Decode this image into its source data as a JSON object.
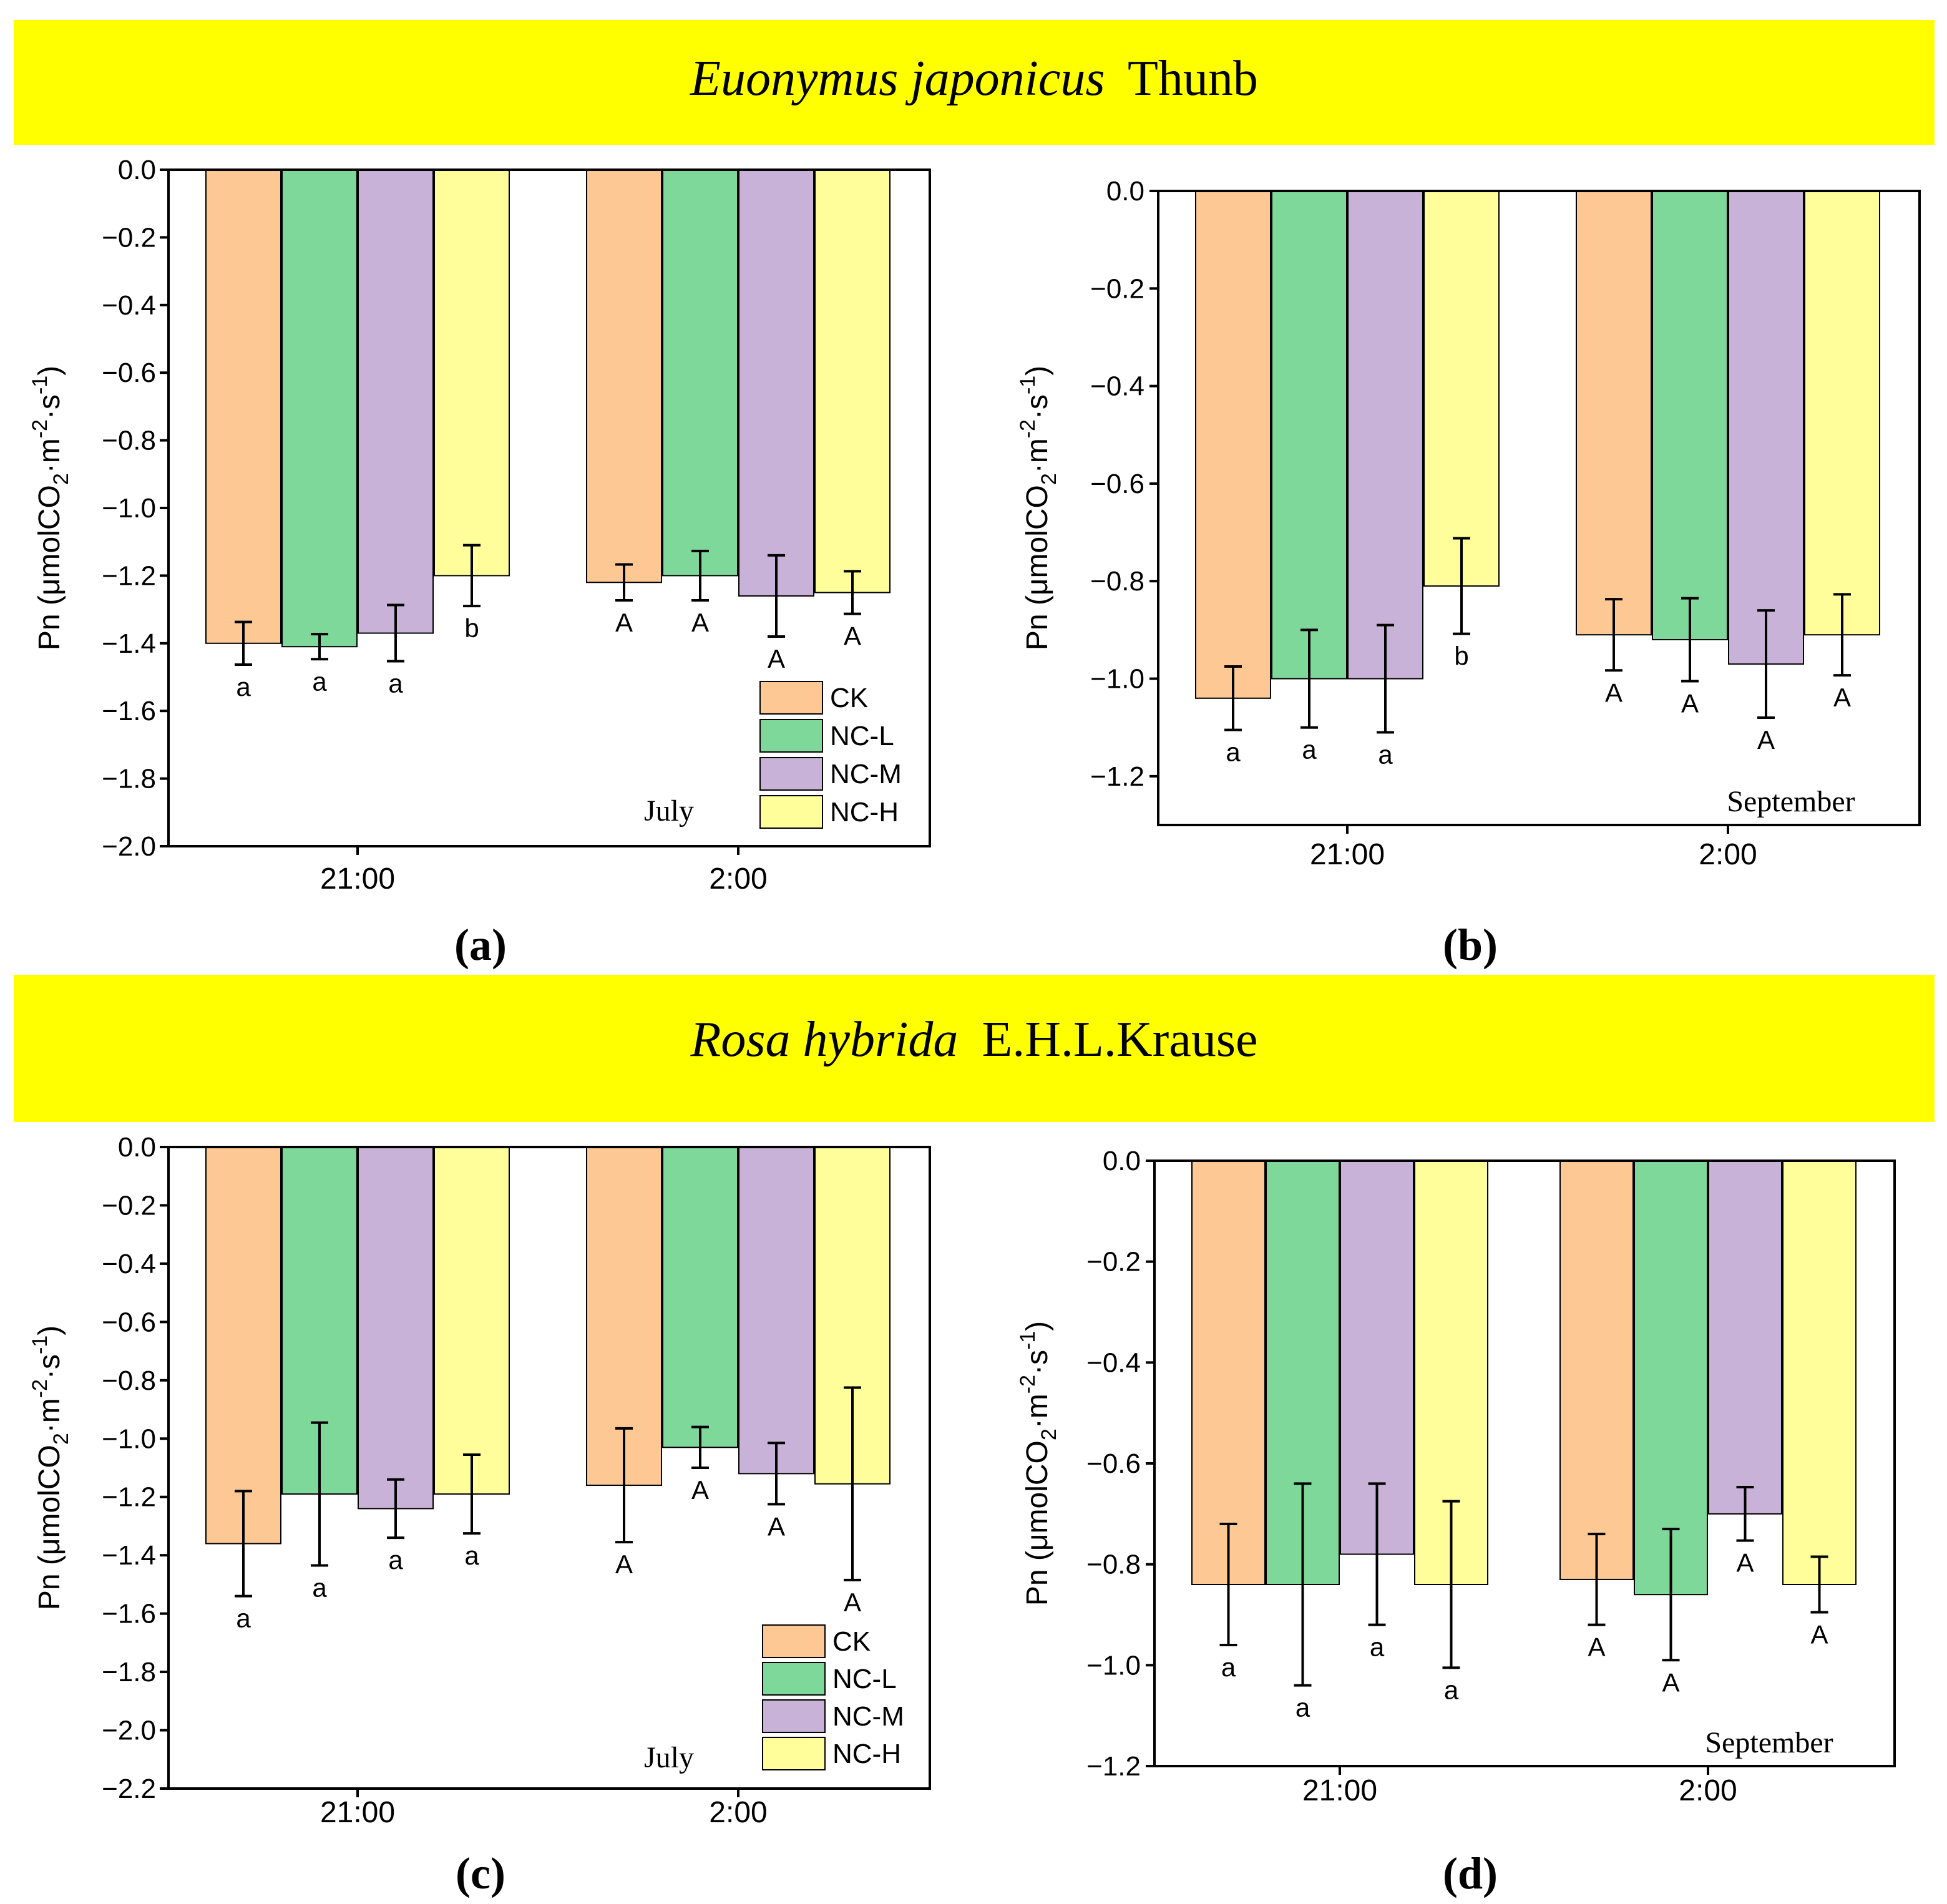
{
  "colors": {
    "banner": "#ffff00",
    "CK": "#fdc893",
    "NC-L": "#7ed89a",
    "NC-M": "#c9b2d7",
    "NC-H": "#fffe9a",
    "axis": "#000000"
  },
  "banners": [
    {
      "species": "Euonymus japonicus",
      "authority": "Thunb"
    },
    {
      "species": "Rosa hybrida",
      "authority": "E.H.L.Krause"
    }
  ],
  "panel_labels": [
    "(a)",
    "(b)",
    "(c)",
    "(d)"
  ],
  "chart_data": [
    {
      "id": "a",
      "type": "bar",
      "title": "",
      "xlabel": "",
      "ylabel": "Pn (μmolCO2·m-2·s-1)",
      "month_label": "July",
      "categories": [
        "21:00",
        "2:00"
      ],
      "ylim": [
        -2.0,
        0.0
      ],
      "yticks": [
        0.0,
        -0.2,
        -0.4,
        -0.6,
        -0.8,
        -1.0,
        -1.2,
        -1.4,
        -1.6,
        -1.8,
        -2.0
      ],
      "ytick_labels": [
        "0.0",
        "−0.2",
        "−0.4",
        "−0.6",
        "−0.8",
        "−1.0",
        "−1.2",
        "−1.4",
        "−1.6",
        "−1.8",
        "−2.0"
      ],
      "legend": [
        "CK",
        "NC-L",
        "NC-M",
        "NC-H"
      ],
      "series": [
        {
          "name": "CK",
          "values": [
            -1.4,
            -1.22
          ],
          "errors": [
            0.063,
            0.053
          ],
          "letters": [
            "a",
            "A"
          ]
        },
        {
          "name": "NC-L",
          "values": [
            -1.41,
            -1.2
          ],
          "errors": [
            0.037,
            0.073
          ],
          "letters": [
            "a",
            "A"
          ]
        },
        {
          "name": "NC-M",
          "values": [
            -1.37,
            -1.26
          ],
          "errors": [
            0.083,
            0.12
          ],
          "letters": [
            "a",
            "A"
          ]
        },
        {
          "name": "NC-H",
          "values": [
            -1.2,
            -1.25
          ],
          "errors": [
            0.09,
            0.063
          ],
          "letters": [
            "b",
            "A"
          ]
        }
      ]
    },
    {
      "id": "b",
      "type": "bar",
      "title": "",
      "xlabel": "",
      "ylabel": "Pn (μmolCO2·m-2·s-1)",
      "month_label": "September",
      "categories": [
        "21:00",
        "2:00"
      ],
      "ylim": [
        -1.3,
        0.0
      ],
      "yticks": [
        0.0,
        -0.2,
        -0.4,
        -0.6,
        -0.8,
        -1.0,
        -1.2
      ],
      "ytick_labels": [
        "0.0",
        "−0.2",
        "−0.4",
        "−0.6",
        "−0.8",
        "−1.0",
        "−1.2"
      ],
      "legend": [],
      "series": [
        {
          "name": "CK",
          "values": [
            -1.04,
            -0.91
          ],
          "errors": [
            0.065,
            0.073
          ],
          "letters": [
            "a",
            "A"
          ]
        },
        {
          "name": "NC-L",
          "values": [
            -1.0,
            -0.92
          ],
          "errors": [
            0.1,
            0.085
          ],
          "letters": [
            "a",
            "A"
          ]
        },
        {
          "name": "NC-M",
          "values": [
            -1.0,
            -0.97
          ],
          "errors": [
            0.11,
            0.11
          ],
          "letters": [
            "a",
            "A"
          ]
        },
        {
          "name": "NC-H",
          "values": [
            -0.81,
            -0.91
          ],
          "errors": [
            0.098,
            0.083
          ],
          "letters": [
            "b",
            "A"
          ]
        }
      ]
    },
    {
      "id": "c",
      "type": "bar",
      "title": "",
      "xlabel": "",
      "ylabel": "Pn (μmolCO2·m-2·s-1)",
      "month_label": "July",
      "categories": [
        "21:00",
        "2:00"
      ],
      "ylim": [
        -2.2,
        0.0
      ],
      "yticks": [
        0.0,
        -0.2,
        -0.4,
        -0.6,
        -0.8,
        -1.0,
        -1.2,
        -1.4,
        -1.6,
        -1.8,
        -2.0,
        -2.2
      ],
      "ytick_labels": [
        "0.0",
        "−0.2",
        "−0.4",
        "−0.6",
        "−0.8",
        "−1.0",
        "−1.2",
        "−1.4",
        "−1.6",
        "−1.8",
        "−2.0",
        "−2.2"
      ],
      "legend": [
        "CK",
        "NC-L",
        "NC-M",
        "NC-H"
      ],
      "series": [
        {
          "name": "CK",
          "values": [
            -1.36,
            -1.16
          ],
          "errors": [
            0.18,
            0.195
          ],
          "letters": [
            "a",
            "A"
          ]
        },
        {
          "name": "NC-L",
          "values": [
            -1.19,
            -1.03
          ],
          "errors": [
            0.245,
            0.07
          ],
          "letters": [
            "a",
            "A"
          ]
        },
        {
          "name": "NC-M",
          "values": [
            -1.24,
            -1.12
          ],
          "errors": [
            0.1,
            0.105
          ],
          "letters": [
            "a",
            "A"
          ]
        },
        {
          "name": "NC-H",
          "values": [
            -1.19,
            -1.155
          ],
          "errors": [
            0.135,
            0.33
          ],
          "letters": [
            "a",
            "A"
          ]
        }
      ]
    },
    {
      "id": "d",
      "type": "bar",
      "title": "",
      "xlabel": "",
      "ylabel": "Pn (μmolCO2·m-2·s-1)",
      "month_label": "September",
      "categories": [
        "21:00",
        "2:00"
      ],
      "ylim": [
        -1.2,
        0.0
      ],
      "yticks": [
        0.0,
        -0.2,
        -0.4,
        -0.6,
        -0.8,
        -1.0,
        -1.2
      ],
      "ytick_labels": [
        "0.0",
        "−0.2",
        "−0.4",
        "−0.6",
        "−0.8",
        "−1.0",
        "−1.2"
      ],
      "legend": [],
      "series": [
        {
          "name": "CK",
          "values": [
            -0.84,
            -0.83
          ],
          "errors": [
            0.12,
            0.09
          ],
          "letters": [
            "a",
            "A"
          ]
        },
        {
          "name": "NC-L",
          "values": [
            -0.84,
            -0.86
          ],
          "errors": [
            0.2,
            0.13
          ],
          "letters": [
            "a",
            "A"
          ]
        },
        {
          "name": "NC-M",
          "values": [
            -0.78,
            -0.7
          ],
          "errors": [
            0.14,
            0.053
          ],
          "letters": [
            "a",
            "A"
          ]
        },
        {
          "name": "NC-H",
          "values": [
            -0.84,
            -0.84
          ],
          "errors": [
            0.165,
            0.055
          ],
          "letters": [
            "a",
            "A"
          ]
        }
      ]
    }
  ]
}
